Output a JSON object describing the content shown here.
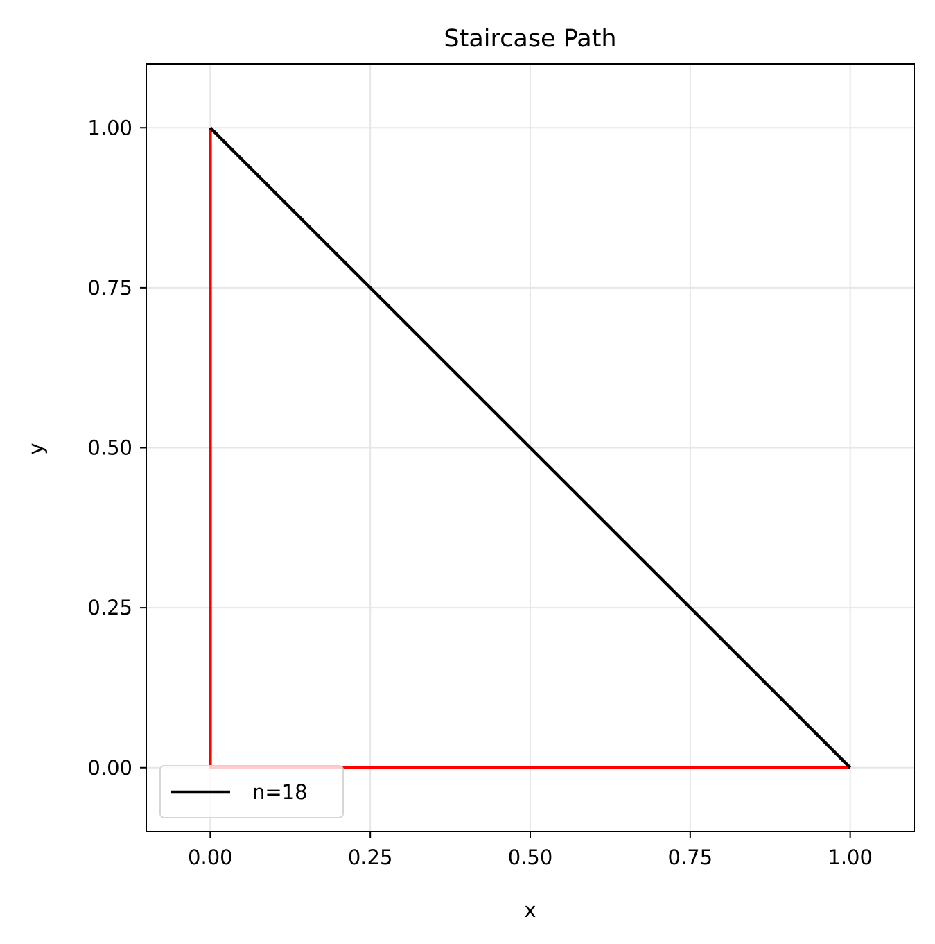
{
  "chart_data": {
    "type": "line",
    "title": "Staircase Path",
    "xlabel": "x",
    "ylabel": "y",
    "xlim": [
      -0.1,
      1.1
    ],
    "ylim": [
      -0.1,
      1.1
    ],
    "xticks": [
      0.0,
      0.25,
      0.5,
      0.75,
      1.0
    ],
    "yticks": [
      0.0,
      0.25,
      0.5,
      0.75,
      1.0
    ],
    "xtick_labels": [
      "0.00",
      "0.25",
      "0.50",
      "0.75",
      "1.00"
    ],
    "ytick_labels": [
      "0.00",
      "0.25",
      "0.50",
      "0.75",
      "1.00"
    ],
    "grid": true,
    "legend_position": "lower-left",
    "series": [
      {
        "name": "",
        "color": "#ff0000",
        "x": [
          0.0,
          0.0,
          1.0
        ],
        "y": [
          1.0,
          0.0,
          0.0
        ]
      },
      {
        "name": "n=18",
        "color": "#000000",
        "staircase_steps": 18,
        "x": [
          0.0,
          1.0
        ],
        "y": [
          1.0,
          0.0
        ]
      }
    ],
    "legend": [
      {
        "label": "n=18",
        "color": "#000000"
      }
    ]
  }
}
